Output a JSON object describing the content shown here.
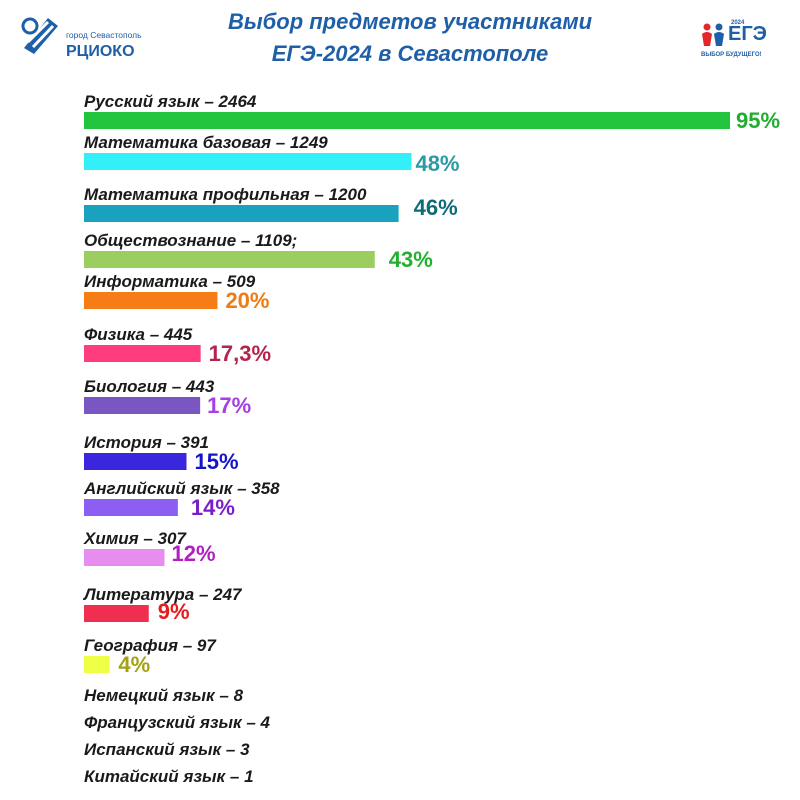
{
  "header": {
    "logo_left": {
      "city": "город Севастополь",
      "org": "РЦИОКО"
    },
    "title_line1": "Выбор предметов участниками",
    "title_line2": "ЕГЭ-2024 в Севастополе",
    "logo_right": {
      "year": "2024",
      "ege": "ЕГЭ",
      "slogan": "ВЫБОР БУДУЩЕГО!"
    }
  },
  "colors": {
    "title": "#1f5fa8",
    "label": "#1a1a1a"
  },
  "chart_data": {
    "type": "bar",
    "orientation": "horizontal",
    "title": "Выбор предметов участниками ЕГЭ-2024 в Севастополе",
    "xlabel": "",
    "ylabel": "",
    "grid": false,
    "xlim": [
      0,
      2600
    ],
    "bars": [
      {
        "label": "Русский язык – 2464",
        "value": 2464,
        "percent_label": "95%",
        "color": "#22c43e",
        "text_color": "#1fae2f"
      },
      {
        "label": "Математика базовая – 1249",
        "value": 1249,
        "percent_label": "48%",
        "color": "#33f0f8",
        "text_color": "#2a9aa6"
      },
      {
        "label": "Математика профильная  – 1200",
        "value": 1200,
        "percent_label": "46%",
        "color": "#18a2bd",
        "text_color": "#0f6b78"
      },
      {
        "label": "Обществознание  – 1109;",
        "value": 1109,
        "percent_label": "43%",
        "color": "#9ccd60",
        "text_color": "#22b02e"
      },
      {
        "label": "Информатика  – 509",
        "value": 509,
        "percent_label": "20%",
        "color": "#f57c16",
        "text_color": "#ef7b14"
      },
      {
        "label": "Физика  – 445",
        "value": 445,
        "percent_label": "17,3%",
        "color": "#ff3d7e",
        "text_color": "#b3244d"
      },
      {
        "label": "Биология  – 443",
        "value": 443,
        "percent_label": "17%",
        "color": "#7a56c2",
        "text_color": "#a63de6"
      },
      {
        "label": "История – 391",
        "value": 391,
        "percent_label": "15%",
        "color": "#3a26dd",
        "text_color": "#1414c8"
      },
      {
        "label": "Английский язык – 358",
        "value": 358,
        "percent_label": "14%",
        "color": "#8c5ef2",
        "text_color": "#7a1fc8"
      },
      {
        "label": "Химия  – 307",
        "value": 307,
        "percent_label": "12%",
        "color": "#e88df0",
        "text_color": "#b01fc2"
      },
      {
        "label": "Литература  – 247",
        "value": 247,
        "percent_label": "9%",
        "color": "#f02e50",
        "text_color": "#e81a1a"
      },
      {
        "label": "География – 97",
        "value": 97,
        "percent_label": "4%",
        "color": "#efff45",
        "text_color": "#a3a214"
      }
    ],
    "small_entries": [
      {
        "label": "Немецкий язык – 8",
        "value": 8
      },
      {
        "label": "Французский язык  – 4",
        "value": 4
      },
      {
        "label": "Испанский язык  – 3",
        "value": 3
      },
      {
        "label": "Китайский язык – 1",
        "value": 1
      }
    ]
  }
}
